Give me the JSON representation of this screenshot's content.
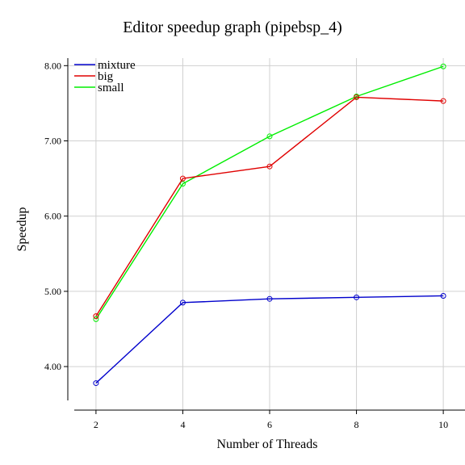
{
  "chart_data": {
    "type": "line",
    "title": "Editor speedup graph (pipebsp_4)",
    "xlabel": "Number of Threads",
    "ylabel": "Speedup",
    "x": [
      2,
      4,
      6,
      8,
      10
    ],
    "x_ticks": [
      "2",
      "4",
      "6",
      "8",
      "10"
    ],
    "y_ticks": [
      "4.00",
      "5.00",
      "6.00",
      "7.00",
      "8.00"
    ],
    "xlim": [
      1.5,
      10.5
    ],
    "ylim": [
      3.55,
      8.1
    ],
    "grid": true,
    "legend_position": "top-left",
    "series": [
      {
        "name": "mixture",
        "color": "#0000cc",
        "values": [
          3.78,
          4.85,
          4.9,
          4.92,
          4.94
        ]
      },
      {
        "name": "big",
        "color": "#e00000",
        "values": [
          4.67,
          6.5,
          6.66,
          7.58,
          7.53
        ]
      },
      {
        "name": "small",
        "color": "#00ee00",
        "values": [
          4.63,
          6.43,
          7.06,
          7.59,
          7.99
        ]
      }
    ]
  }
}
